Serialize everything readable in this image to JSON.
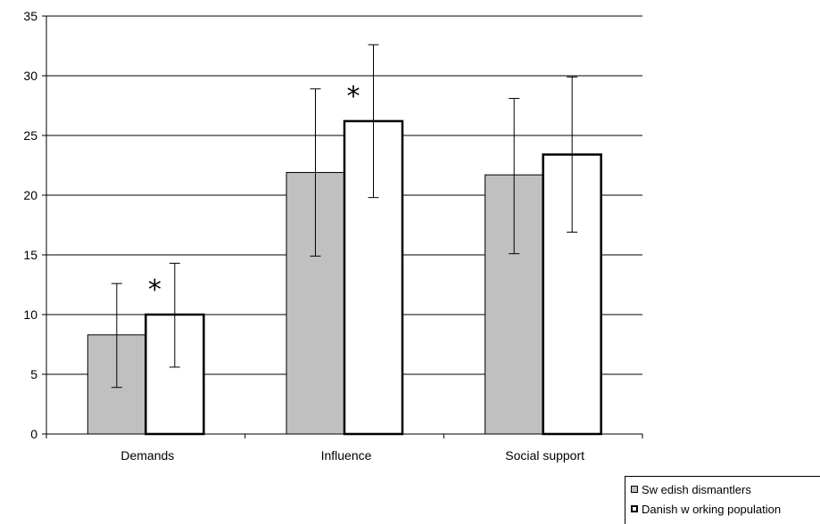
{
  "chart_data": {
    "type": "bar",
    "categories": [
      "Demands",
      "Influence",
      "Social support"
    ],
    "series": [
      {
        "name": "Sw edish dismantlers",
        "values": [
          8.3,
          21.9,
          21.7
        ],
        "error_low": [
          3.9,
          14.9,
          15.1
        ],
        "error_high": [
          12.6,
          28.9,
          28.1
        ]
      },
      {
        "name": "Danish w orking population",
        "values": [
          10.0,
          26.2,
          23.4
        ],
        "error_low": [
          5.6,
          19.8,
          16.9
        ],
        "error_high": [
          14.3,
          32.6,
          29.9
        ]
      }
    ],
    "annotations": [
      {
        "text": "*",
        "category": "Demands",
        "series": 1
      },
      {
        "text": "*",
        "category": "Influence",
        "series": 1
      }
    ],
    "ylim": [
      0,
      35
    ],
    "yticks": [
      "0",
      "5",
      "10",
      "15",
      "20",
      "25",
      "30",
      "35"
    ],
    "grid": true,
    "legend": "bottom-right",
    "colors": {
      "series0": "#c0c0c0",
      "series1": "#ffffff",
      "stroke": "#000000"
    }
  }
}
